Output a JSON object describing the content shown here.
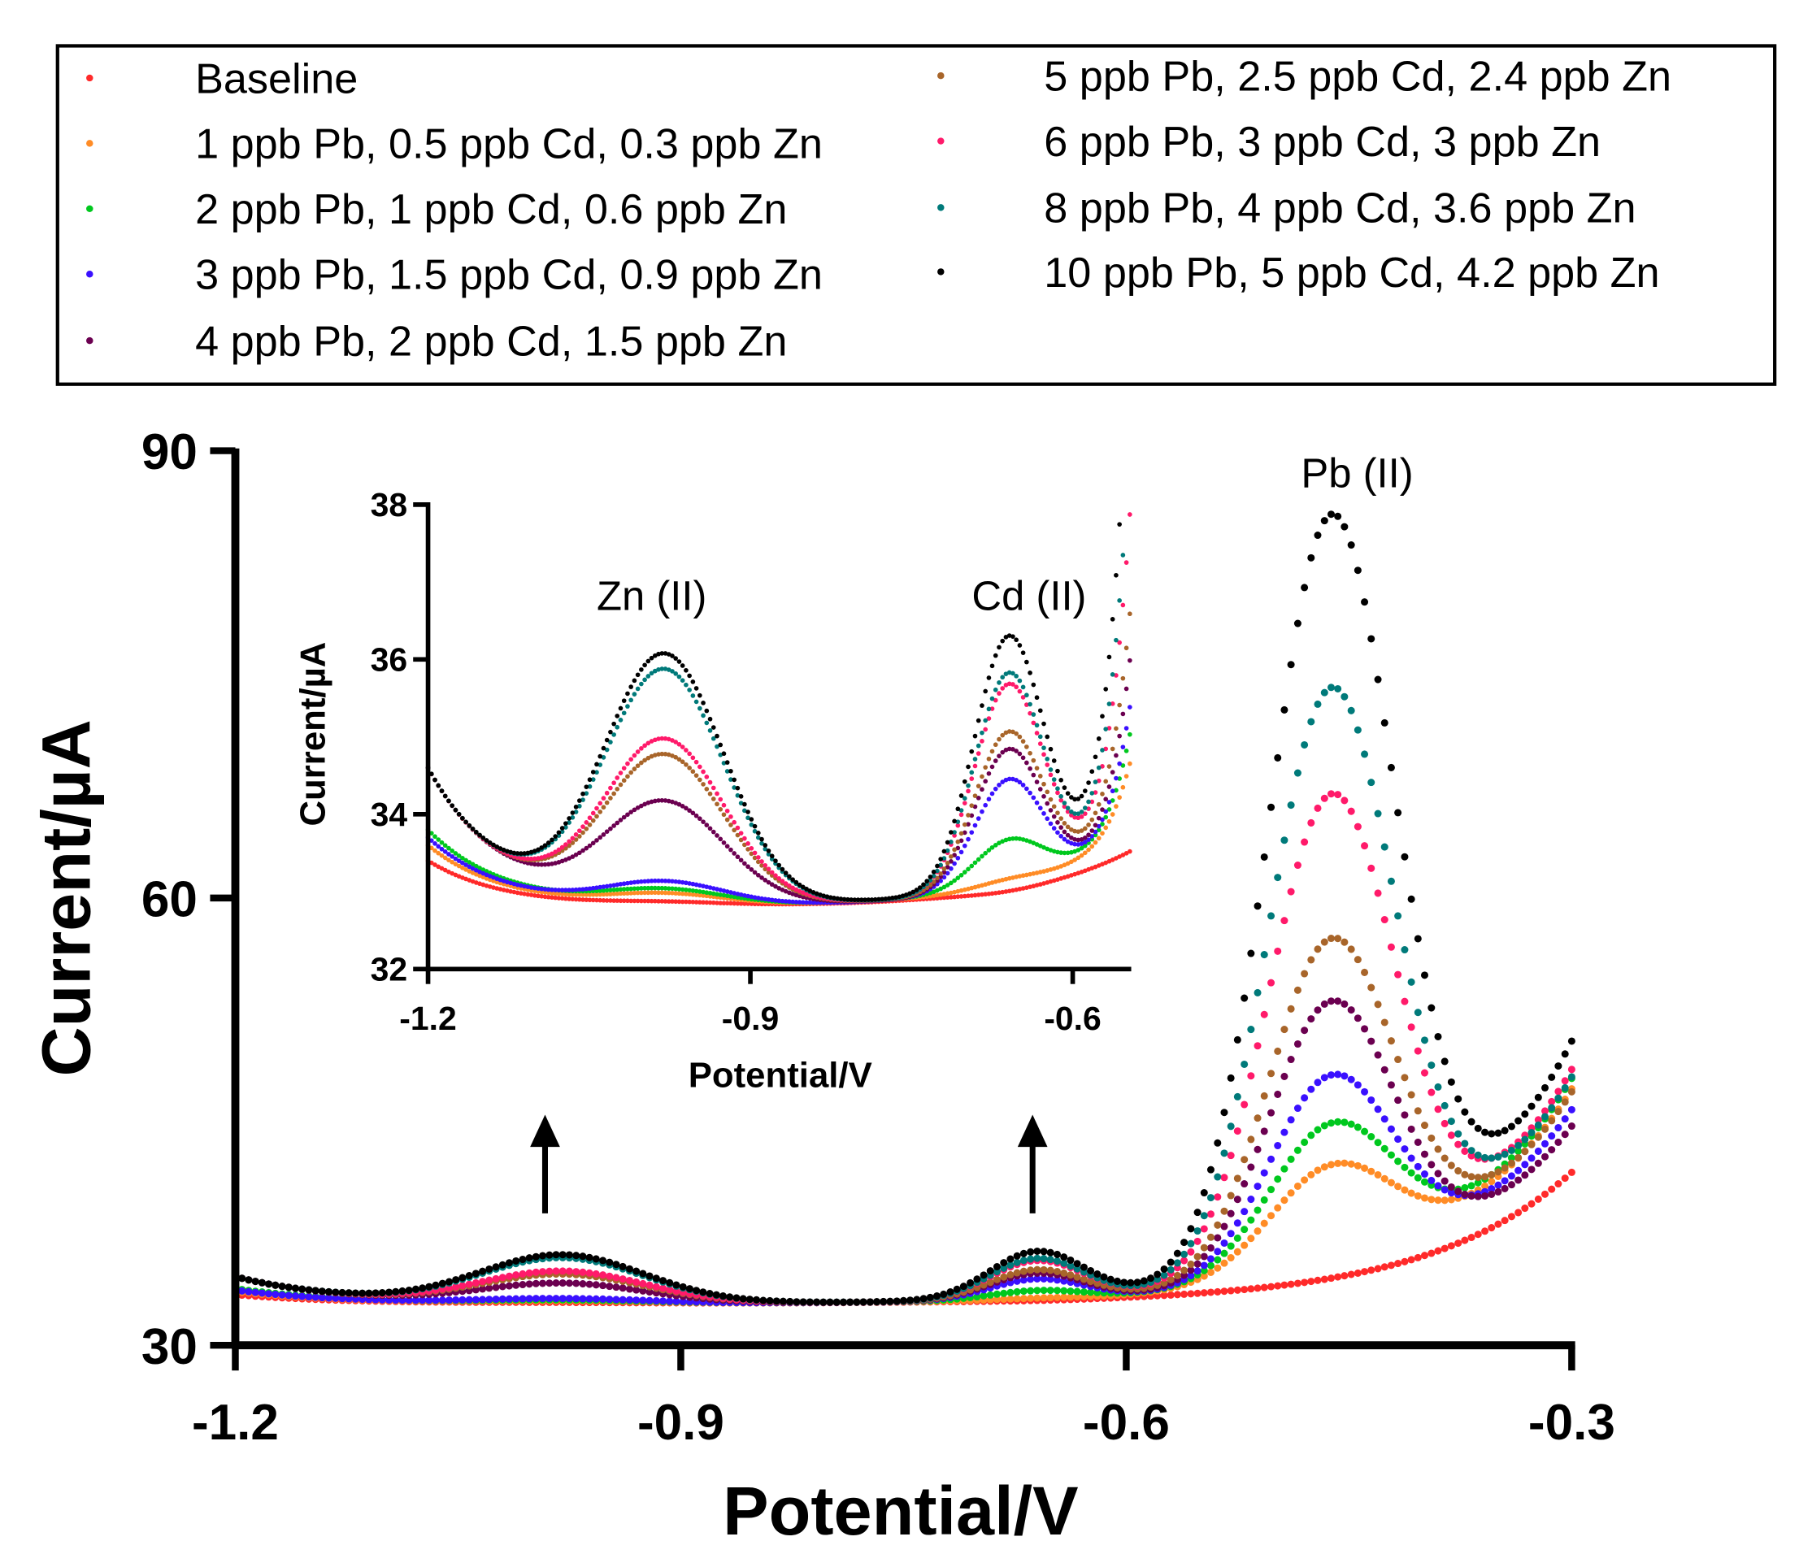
{
  "chart_data": {
    "type": "scatter",
    "title": "",
    "xlabel": "Potential/V",
    "ylabel": "Current/µA",
    "xlim": [
      -1.2,
      -0.3
    ],
    "ylim": [
      30,
      90
    ],
    "xticks": [
      "-1.2",
      "-0.9",
      "-0.6",
      "-0.3"
    ],
    "yticks": [
      "30",
      "60",
      "90"
    ],
    "legend_position": "top",
    "annotations": [
      "Pb (II)"
    ],
    "peak_potentials": {
      "Zn": -0.98,
      "Cd": -0.66,
      "Pb": -0.462
    },
    "series": [
      {
        "name": "Baseline",
        "color": "#ff2a2a",
        "current_at_-1.2": 33.4,
        "Zn_peak": 32.85,
        "Cd_peak": 33.0,
        "Pb_peak": null,
        "current_at_-0.3": 41.6
      },
      {
        "name": "1 ppb Pb, 0.5 ppb Cd, 0.3 ppb Zn",
        "color": "#ff8c26",
        "current_at_-1.2": 33.6,
        "Zn_peak": 32.95,
        "Cd_peak": 33.1,
        "Pb_peak": 41.3,
        "current_at_-0.3": 47.2
      },
      {
        "name": "2 ppb Pb, 1 ppb Cd, 0.6 ppb Zn",
        "color": "#00c81e",
        "current_at_-1.2": 33.8,
        "Zn_peak": 33.0,
        "Cd_peak": 33.6,
        "Pb_peak": 44.0,
        "current_at_-0.3": 47.9
      },
      {
        "name": "3 ppb Pb, 1.5 ppb Cd, 0.9 ppb Zn",
        "color": "#3a10ff",
        "current_at_-1.2": 33.7,
        "Zn_peak": 33.1,
        "Cd_peak": 34.4,
        "Pb_peak": 47.5,
        "current_at_-0.3": 45.8
      },
      {
        "name": "4 ppb Pb, 2 ppb Cd, 1.5 ppb Zn",
        "color": "#6b0050",
        "current_at_-1.2": 34.6,
        "Zn_peak": 34.1,
        "Cd_peak": 34.8,
        "Pb_peak": 52.6,
        "current_at_-0.3": 44.7
      },
      {
        "name": "5 ppb Pb, 2.5 ppb Cd, 2.4 ppb Zn",
        "color": "#a8652a",
        "current_at_-1.2": 34.6,
        "Zn_peak": 34.7,
        "Cd_peak": 35.0,
        "Pb_peak": 56.5,
        "current_at_-0.3": 47.0
      },
      {
        "name": "6 ppb Pb, 3 ppb Cd, 3 ppb Zn",
        "color": "#ff1a6a",
        "current_at_-1.2": 34.6,
        "Zn_peak": 34.9,
        "Cd_peak": 35.6,
        "Pb_peak": 66.0,
        "current_at_-0.3": 48.5
      },
      {
        "name": "8 ppb Pb, 4 ppb Cd, 3.6 ppb Zn",
        "color": "#007a7a",
        "current_at_-1.2": 34.6,
        "Zn_peak": 35.8,
        "Cd_peak": 35.75,
        "Pb_peak": 73.2,
        "current_at_-0.3": 48.0
      },
      {
        "name": "10 ppb Pb, 5 ppb Cd, 4.2 ppb Zn",
        "color": "#000000",
        "current_at_-1.2": 34.6,
        "Zn_peak": 36.0,
        "Cd_peak": 36.2,
        "Pb_peak": 84.5,
        "current_at_-0.3": 50.4
      }
    ],
    "inset": {
      "xlabel": "Potential/V",
      "ylabel": "Current/µA",
      "xlim": [
        -1.2,
        -0.547
      ],
      "ylim": [
        32,
        38
      ],
      "xticks": [
        "-1.2",
        "-0.9",
        "-0.6"
      ],
      "yticks": [
        "32",
        "34",
        "36",
        "38"
      ],
      "annotations": [
        "Zn (II)",
        "Cd (II)"
      ]
    }
  }
}
